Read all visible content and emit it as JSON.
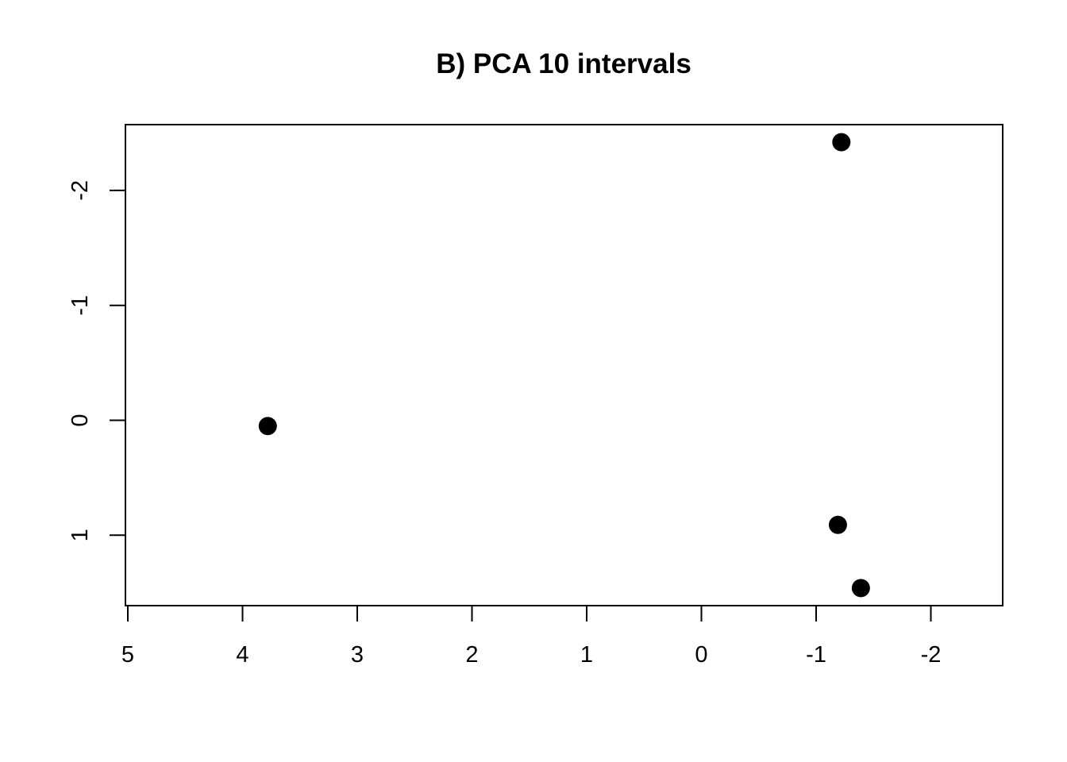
{
  "chart_data": {
    "type": "scatter",
    "title": "B) PCA 10 intervals",
    "xlabel": "",
    "ylabel": "",
    "x_axis": {
      "reversed": true,
      "ticks": [
        5,
        4,
        3,
        2,
        1,
        0,
        -1,
        -2
      ],
      "tick_labels": [
        "5",
        "4",
        "3",
        "2",
        "1",
        "0",
        "-1",
        "-2"
      ]
    },
    "y_axis": {
      "reversed": true,
      "ticks": [
        -2,
        -1,
        0,
        1
      ],
      "tick_labels": [
        "-2",
        "-1",
        "0",
        "1"
      ]
    },
    "xlim": [
      5,
      -2.6
    ],
    "ylim": [
      -2.57,
      1.6
    ],
    "grid": false,
    "legend": "none",
    "colors": {
      "points": "#000000",
      "axes": "#000000",
      "background": "#ffffff"
    },
    "points": [
      {
        "x": -1.22,
        "y": -2.42
      },
      {
        "x": 3.78,
        "y": 0.05
      },
      {
        "x": -1.19,
        "y": 0.91
      },
      {
        "x": -1.39,
        "y": 1.46
      }
    ]
  }
}
